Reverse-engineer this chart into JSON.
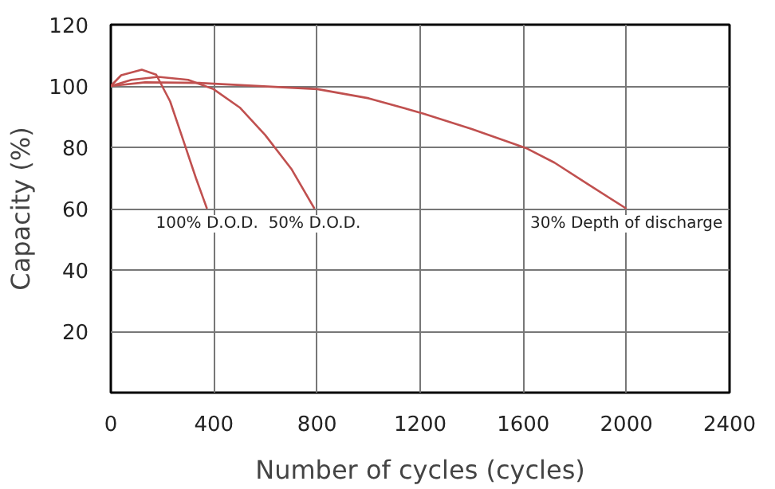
{
  "chart_data": {
    "type": "line",
    "xlabel": "Number of cycles (cycles)",
    "ylabel": "Capacity (%)",
    "xlim": [
      0,
      2400
    ],
    "ylim": [
      0,
      120
    ],
    "xticks": [
      0,
      400,
      800,
      1200,
      1600,
      2000,
      2400
    ],
    "yticks": [
      20,
      40,
      60,
      80,
      100,
      120
    ],
    "grid": true,
    "line_style": "solid",
    "series": [
      {
        "name": "100% D.O.D.",
        "color": "#c0504f",
        "x": [
          0,
          40,
          120,
          176,
          230,
          281,
          330,
          373
        ],
        "values": [
          100,
          103.5,
          105.3,
          103.7,
          95,
          82.3,
          70,
          60
        ]
      },
      {
        "name": "50% D.O.D.",
        "color": "#c0504f",
        "x": [
          0,
          80,
          184,
          300,
          398,
          500,
          599,
          700,
          790
        ],
        "values": [
          100,
          102,
          103,
          102,
          99,
          93,
          84,
          73,
          60
        ]
      },
      {
        "name": "30% Depth of discharge",
        "color": "#c0504f",
        "x": [
          0,
          133,
          345,
          801,
          1000,
          1213,
          1400,
          1615,
          1721,
          1850,
          2000
        ],
        "values": [
          100,
          101.2,
          101,
          99,
          96,
          91,
          86,
          79.6,
          75,
          68,
          60
        ]
      }
    ]
  }
}
